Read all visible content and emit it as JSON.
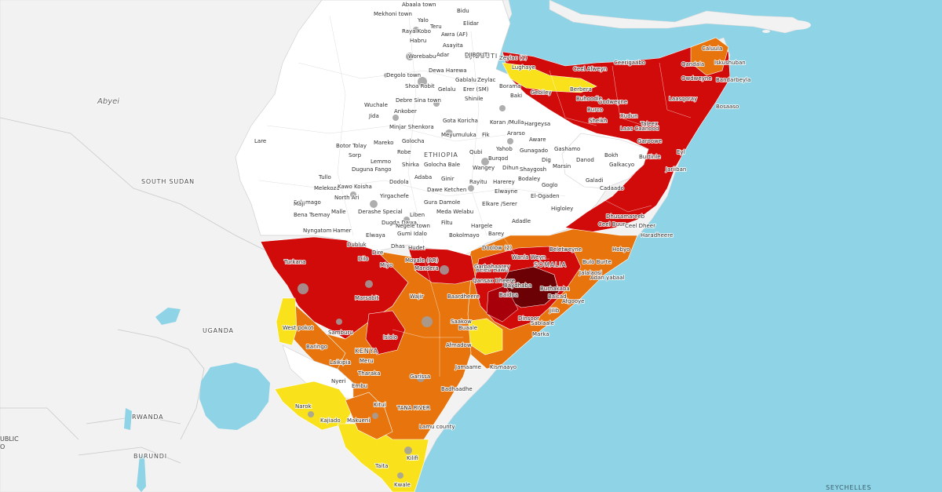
{
  "colors": {
    "sea": "#8fd3e6",
    "land": "#f2f2f2",
    "no_data": "#ffffff",
    "phase2": "#f9e11b",
    "phase3": "#e7740c",
    "phase4": "#d10a0a",
    "phase5": "#6b0005",
    "lakes": "#8fd3e6",
    "dot": "#a0a0a0"
  },
  "countries": [
    {
      "key": "south-sudan",
      "label": "SOUTH SUDAN"
    },
    {
      "key": "uganda",
      "label": "UGANDA"
    },
    {
      "key": "rwanda",
      "label": "RWANDA"
    },
    {
      "key": "burundi",
      "label": "BURUNDI"
    },
    {
      "key": "ethiopia",
      "label": "ETHIOPIA"
    },
    {
      "key": "djibouti",
      "label": "DJIBOUTI"
    },
    {
      "key": "kenya",
      "label": "KENYA"
    },
    {
      "key": "somalia",
      "label": "SOMALIA"
    },
    {
      "key": "seychelles",
      "label": "SEYCHELLES"
    }
  ],
  "places": [
    {
      "key": "abyei",
      "label": "Abyei"
    }
  ],
  "edge_labels": [
    "UBLIC",
    "O"
  ],
  "region_labels": [
    "Abaala town",
    "Bidu",
    "Mekhoni town",
    "Yalo",
    "Teru",
    "Elidar",
    "Raya Kobo",
    "Awra (AF)",
    "Habru",
    "Asayita",
    "Worebabu",
    "Adar",
    "DJIBOUTI",
    "Dewa Harewa",
    "Zeylac (1)",
    "Degolo town",
    "Gablalu",
    "Zeylac",
    "Lughaye",
    "Shoa Robit",
    "Gelalu",
    "Erer (SM)",
    "Shinile",
    "Borama",
    "Baki",
    "Gebiley",
    "Berbera",
    "Wuchale",
    "Debre Sina town",
    "Jida",
    "Ankober",
    "Hargeysa",
    "Gota Koricha",
    "Minjar Shenkora",
    "Koran /Mulla",
    "Meyumuluka",
    "Fik",
    "Ararso",
    "Golocha",
    "Aware",
    "Robe",
    "Qubi",
    "Yahob",
    "Gunagado",
    "Gashamo",
    "Botor Tolay",
    "Mareko",
    "Lare",
    "Sorp",
    "Lemmo",
    "Shirka",
    "Golocha Bale",
    "Burqod",
    "Dig",
    "Danod",
    "Bokh",
    "Dugunа Fango",
    "Wangey",
    "Dihun",
    "Shaygosh",
    "Marsin",
    "Tullo",
    "Dodola",
    "Adaba",
    "Ginir",
    "Rayitu",
    "Harerey",
    "Bodaley",
    "Goglo",
    "Galadi",
    "Melekoza",
    "Kawo Koisha",
    "Yirgachefe",
    "Dawe Ketchen",
    "Elwayne",
    "El-Ogaden",
    "Salamago",
    "North Ari",
    "Gura Damole",
    "Elkare /Serer",
    "Higloley",
    "Maji",
    "Derashe Special",
    "Liben",
    "Meda Welabu",
    "Bena Tsemay",
    "Malle",
    "Dugda Dawa",
    "Negele town",
    "Filtu",
    "Hargele",
    "Adadle",
    "Nyngatom",
    "Hamer",
    "Elwaya",
    "Gumi Idalo",
    "Bokolmayo",
    "Barey",
    "Dubluk",
    "Dhas",
    "Hudet",
    "Doolow (2)",
    "Dire",
    "Dilo",
    "Miyo",
    "Moyale (AR)",
    "Mandera",
    "Turkana",
    "Marsabit",
    "Wajir",
    "West pokot",
    "Samburu",
    "Baringo",
    "Isiolo",
    "Laikipia",
    "Meru",
    "Tharaka",
    "Nyeri",
    "Embu",
    "Garissa",
    "Kitui",
    "TANA RIVER",
    "Narok",
    "Kajiado",
    "Makueni",
    "Lamu county",
    "Kilifi",
    "Taita",
    "Kwale",
    "Saakow",
    "Baardheere",
    "Buaale",
    "Afmadow",
    "Jamaame",
    "Kismaayo",
    "Badhaadhe",
    "Wanla Weyn",
    "Baydhaba",
    "Burhakaba",
    "Baidoa",
    "Qansax Dheere",
    "Beled Hawo",
    "Garbahaarey",
    "Beletweyne",
    "Bulo Burte",
    "Jalalaqsi",
    "Adan yabaal",
    "Balcad",
    "Afgooye",
    "Jilib",
    "Sablaale",
    "Dinsoor",
    "Marka",
    "Ceel Buur",
    "Ceel Dheer",
    "Haradheere",
    "Hobyo",
    "Dhusamareeb",
    "Cadaado",
    "Galkacyo",
    "Jariiban",
    "Eyl",
    "Burtinle",
    "Garoowe",
    "Laas Caanood",
    "Taleex",
    "Xudun",
    "Ceel Afweyn",
    "Ceerigaabo",
    "Laasqoray",
    "Qandala",
    "Caluula",
    "Iskushuban",
    "Bandarbeyla",
    "Bosaaso",
    "Owdweyne",
    "Burco",
    "Sheikh",
    "Oodweyne",
    "Buhoodle"
  ]
}
